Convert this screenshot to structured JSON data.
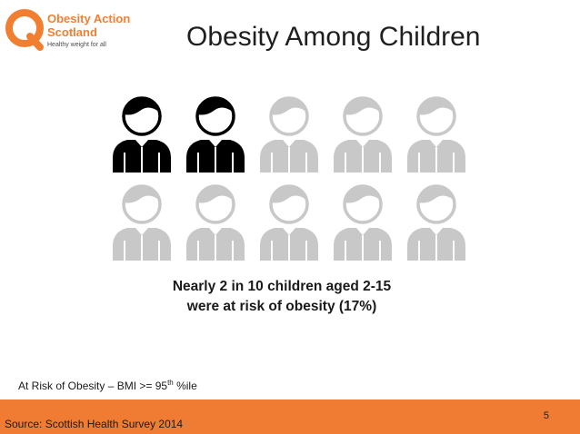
{
  "logo": {
    "icon": "obesity-action-scotland-logo",
    "line1": "Obesity Action",
    "line2": "Scotland",
    "tagline": "Healthy weight for all",
    "brand_color": "#f07f32"
  },
  "title": "Obesity Among Children",
  "pictogram": {
    "total": 10,
    "highlighted": 2,
    "highlight_color": "#000000",
    "base_color": "#c8c8c8",
    "icon": "child-person-icon"
  },
  "caption": {
    "line1": "Nearly 2 in 10 children aged 2-15",
    "line2": "were at risk of obesity (17%)"
  },
  "definition": {
    "text": "At Risk of Obesity – BMI >= 95",
    "sup": "th",
    "suffix": " %ile"
  },
  "footer": {
    "page_number": "5",
    "source": "Source: Scottish Health Survey 2014",
    "color": "#f07b33"
  }
}
